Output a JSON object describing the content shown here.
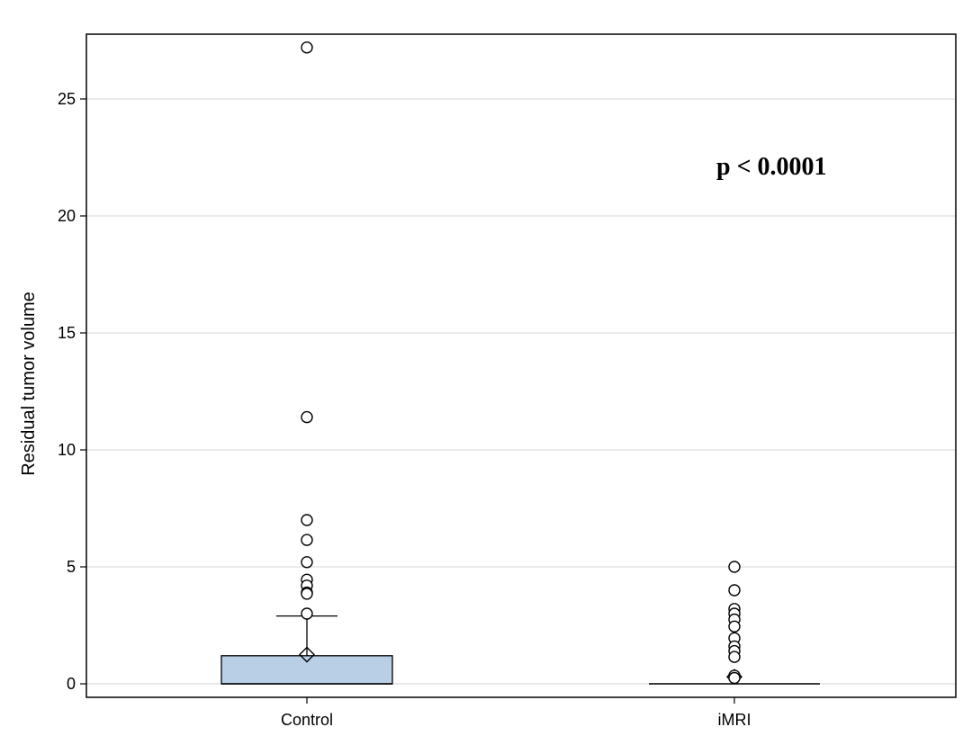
{
  "chart_data": {
    "type": "box",
    "ylabel": "Residual tumor volume",
    "xlabel": "",
    "ylim": [
      -0.6,
      27.8
    ],
    "yticks": [
      0,
      5,
      10,
      15,
      20,
      25
    ],
    "grid": "horizontal",
    "categories": [
      "Control",
      "iMRI"
    ],
    "annotation": "p < 0.0001",
    "box_color": "#b9cfe6",
    "boxes": [
      {
        "category": "Control",
        "q1": 0.0,
        "median": 0.0,
        "q3": 1.2,
        "whisker_low": 0.0,
        "whisker_high": 2.9,
        "mean": 1.25,
        "outliers": [
          27.2,
          11.4,
          7.0,
          6.15,
          5.2,
          4.45,
          4.2,
          3.9,
          3.85,
          3.0
        ]
      },
      {
        "category": "iMRI",
        "q1": 0.0,
        "median": 0.0,
        "q3": 0.0,
        "whisker_low": 0.0,
        "whisker_high": 0.0,
        "mean": 0.3,
        "outliers": [
          5.0,
          4.0,
          3.2,
          3.0,
          2.75,
          2.45,
          1.95,
          1.6,
          1.4,
          1.15,
          0.35,
          0.25
        ]
      }
    ]
  }
}
